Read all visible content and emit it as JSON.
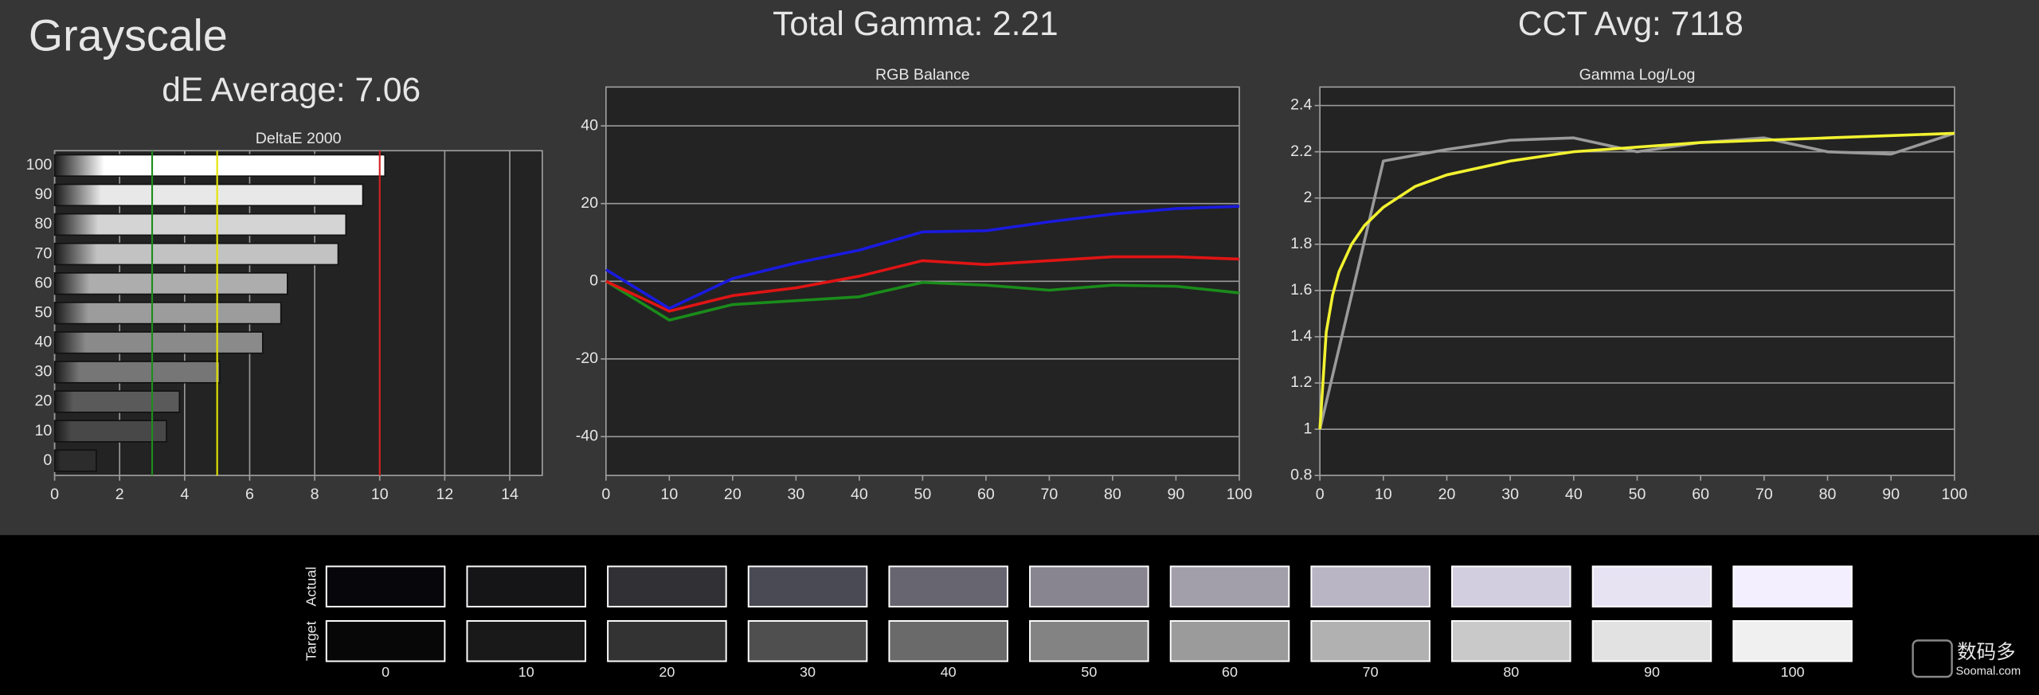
{
  "header": {
    "title": "Grayscale",
    "de_average": "dE Average: 7.06",
    "total_gamma": "Total Gamma: 2.21",
    "cct_avg": "CCT Avg: 7118"
  },
  "chart_data": [
    {
      "type": "bar",
      "orientation": "horizontal",
      "title": "DeltaE 2000",
      "categories": [
        "100",
        "90",
        "80",
        "70",
        "60",
        "50",
        "40",
        "30",
        "20",
        "10",
        "0"
      ],
      "values": [
        10.16,
        9.48,
        8.96,
        8.72,
        7.16,
        6.96,
        6.4,
        5.08,
        3.84,
        3.44,
        1.28
      ],
      "colors": [
        "#ffffff",
        "#e8e8e8",
        "#d4d4d4",
        "#c2c2c2",
        "#adadad",
        "#9c9c9c",
        "#8a8a8a",
        "#767676",
        "#5a5a5a",
        "#484848",
        "#2c2c2c"
      ],
      "xlim": [
        0,
        15
      ],
      "xticks": [
        0,
        2,
        4,
        6,
        8,
        10,
        12,
        14
      ],
      "grid": true,
      "reference_lines": [
        {
          "value": 3,
          "color": "#1e8c1e"
        },
        {
          "value": 5,
          "color": "#e6e600"
        },
        {
          "value": 10,
          "color": "#d42020"
        }
      ]
    },
    {
      "type": "line",
      "title": "RGB Balance",
      "x": [
        0,
        10,
        20,
        30,
        40,
        50,
        60,
        70,
        80,
        90,
        100
      ],
      "series": [
        {
          "color": "#1a8c1a",
          "values": [
            0,
            -10,
            -6,
            -5,
            -4,
            -0.3,
            -1,
            -2.3,
            -1,
            -1.3,
            -3
          ]
        },
        {
          "color": "#e01414",
          "values": [
            0,
            -7.7,
            -3.7,
            -1.7,
            1.3,
            5.3,
            4.3,
            5.3,
            6.3,
            6.3,
            5.7
          ]
        },
        {
          "color": "#1a1ae0",
          "values": [
            3,
            -7,
            0.7,
            4.7,
            8,
            12.7,
            13,
            15.3,
            17.3,
            18.7,
            19.3
          ]
        }
      ],
      "xlim": [
        0,
        100
      ],
      "xticks": [
        0,
        10,
        20,
        30,
        40,
        50,
        60,
        70,
        80,
        90,
        100
      ],
      "ylim": [
        -50,
        50
      ],
      "yticks": [
        -40,
        -20,
        0,
        20,
        40
      ],
      "grid": true
    },
    {
      "type": "line",
      "title": "Gamma Log/Log",
      "series": [
        {
          "color": "#9a9a9a",
          "x": [
            0,
            10,
            20,
            30,
            40,
            50,
            60,
            70,
            80,
            90,
            100
          ],
          "values": [
            1.0,
            2.16,
            2.21,
            2.25,
            2.26,
            2.2,
            2.24,
            2.26,
            2.2,
            2.19,
            2.28
          ]
        },
        {
          "color": "#f2f230",
          "x": [
            0,
            1,
            2,
            3,
            5,
            7,
            10,
            15,
            20,
            30,
            40,
            50,
            60,
            70,
            80,
            90,
            100
          ],
          "values": [
            1.0,
            1.42,
            1.58,
            1.68,
            1.8,
            1.88,
            1.96,
            2.05,
            2.1,
            2.16,
            2.2,
            2.22,
            2.24,
            2.25,
            2.26,
            2.27,
            2.28
          ]
        }
      ],
      "xlim": [
        0,
        100
      ],
      "xticks": [
        0,
        10,
        20,
        30,
        40,
        50,
        60,
        70,
        80,
        90,
        100
      ],
      "ylim": [
        0.8,
        2.48
      ],
      "yticks": [
        0.8,
        1,
        1.2,
        1.4,
        1.6,
        1.8,
        2,
        2.2,
        2.4
      ],
      "grid": true
    }
  ],
  "swatches": {
    "row_labels": [
      "Actual",
      "Target"
    ],
    "levels": [
      "0",
      "10",
      "20",
      "30",
      "40",
      "50",
      "60",
      "70",
      "80",
      "90",
      "100"
    ],
    "actual": [
      "#07070b",
      "#151417",
      "#303035",
      "#4a4a55",
      "#676670",
      "#888490",
      "#a29fab",
      "#bab5c4",
      "#d3cde0",
      "#e8e3f3",
      "#f3efff"
    ],
    "target": [
      "#070707",
      "#191919",
      "#333333",
      "#4f4f4f",
      "#6a6a6a",
      "#838383",
      "#9b9b9b",
      "#b1b1b1",
      "#c9c9c9",
      "#e2e2e2",
      "#f0f0f0"
    ]
  },
  "watermark": {
    "name": "数码多",
    "site": "Soomal.com"
  }
}
